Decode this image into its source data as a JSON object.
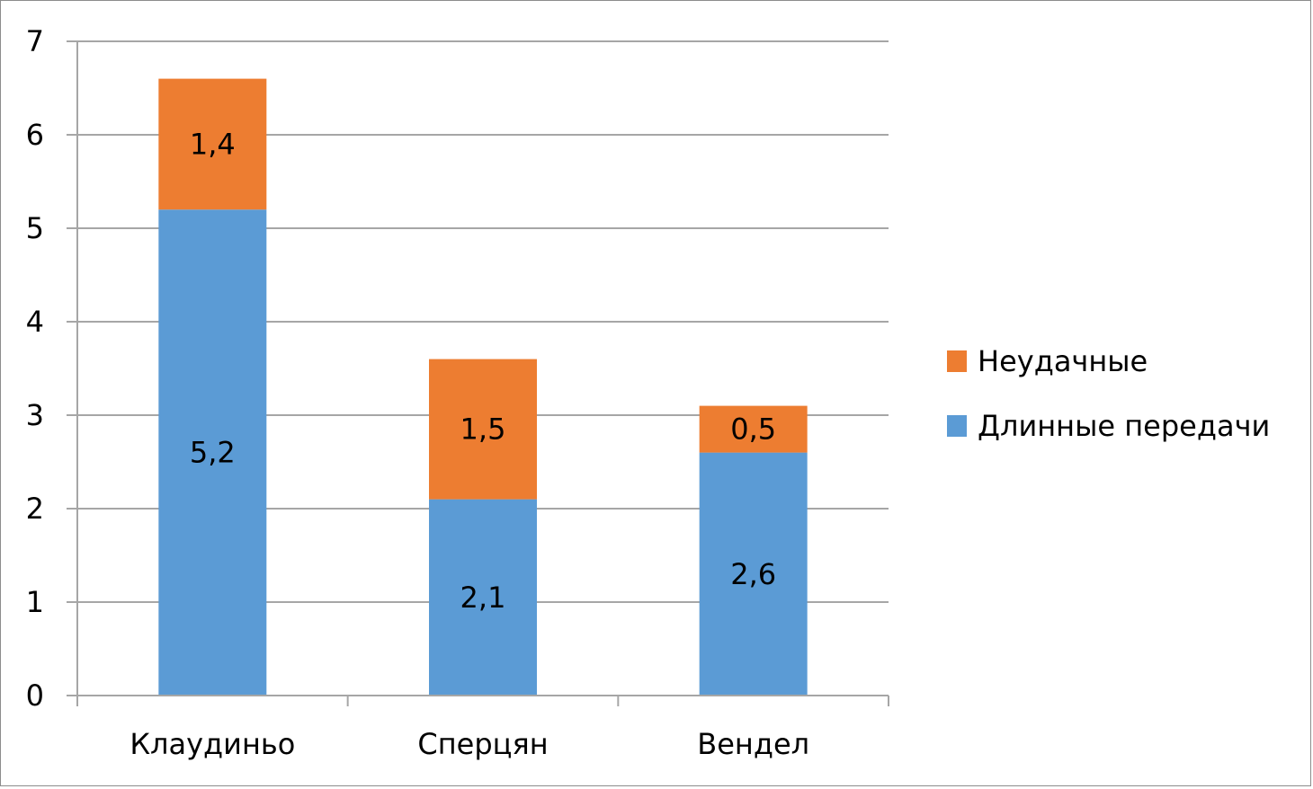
{
  "chart_data": {
    "type": "bar",
    "stacked": true,
    "categories": [
      "Клаудиньо",
      "Сперцян",
      "Вендел"
    ],
    "series": [
      {
        "name": "Длинные передачи",
        "values": [
          5.2,
          2.1,
          2.6
        ],
        "labels": [
          "5,2",
          "2,1",
          "2,6"
        ],
        "color": "#5b9bd5"
      },
      {
        "name": "Неудачные",
        "values": [
          1.4,
          1.5,
          0.5
        ],
        "labels": [
          "1,4",
          "1,5",
          "0,5"
        ],
        "color": "#ed7d31"
      }
    ],
    "ylim": [
      0,
      7
    ],
    "yticks": [
      "0",
      "1",
      "2",
      "3",
      "4",
      "5",
      "6",
      "7"
    ],
    "title": "",
    "xlabel": "",
    "ylabel": "",
    "grid": true,
    "legend": {
      "position": "right",
      "entries": [
        "Неудачные",
        "Длинные передачи"
      ]
    },
    "gridline_color": "#a6a6a6"
  }
}
